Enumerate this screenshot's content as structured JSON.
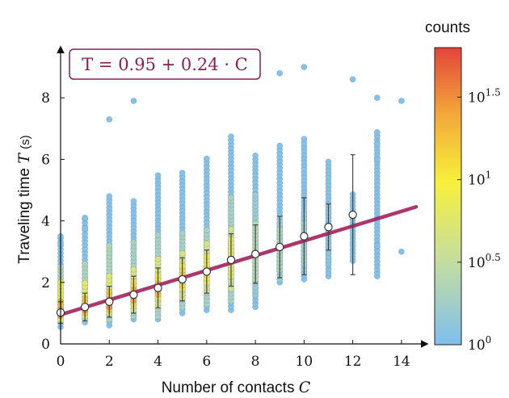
{
  "chart_data": {
    "type": "scatter",
    "xlabel": "Number of contacts",
    "xlabel_symbol": "C",
    "ylabel": "Traveling time",
    "ylabel_symbol": "T",
    "ylabel_unit": "(s)",
    "xlim": [
      0,
      14.6
    ],
    "ylim": [
      0,
      9.5
    ],
    "xticks": [
      "0",
      "2",
      "4",
      "6",
      "8",
      "10",
      "12",
      "14"
    ],
    "yticks": [
      "0",
      "2",
      "4",
      "6",
      "8"
    ],
    "fit": {
      "label": "T = 0.95 + 0.24 · C",
      "intercept": 0.95,
      "slope": 0.24,
      "color": "#a4225e"
    },
    "colorbar": {
      "title": "counts",
      "labels": [
        {
          "base": "10",
          "exp": "0",
          "value": 0
        },
        {
          "base": "10",
          "exp": "0.5",
          "value": 0.5
        },
        {
          "base": "10",
          "exp": "1",
          "value": 1
        },
        {
          "base": "10",
          "exp": "1.5",
          "value": 1.5
        }
      ],
      "range": [
        0,
        1.8
      ],
      "colors": [
        "#7fbfef",
        "#c8df9a",
        "#f7f03a",
        "#f2a63a",
        "#e2453a"
      ]
    },
    "points": [
      {
        "x": 0,
        "segments": [
          [
            0.55,
            3.5,
            0.05
          ],
          [
            0.7,
            2.6,
            0.35
          ],
          [
            0.8,
            2.0,
            0.85
          ],
          [
            0.9,
            1.4,
            1.35
          ],
          [
            0.95,
            1.15,
            1.7
          ]
        ],
        "outliers": [
          3.25,
          3.5
        ]
      },
      {
        "x": 1,
        "segments": [
          [
            0.7,
            4.1,
            0.05
          ],
          [
            0.8,
            2.7,
            0.35
          ],
          [
            0.9,
            2.0,
            0.8
          ],
          [
            1.0,
            1.5,
            1.25
          ],
          [
            1.1,
            1.3,
            1.55
          ]
        ],
        "outliers": [
          3.75,
          4.1
        ]
      },
      {
        "x": 2,
        "segments": [
          [
            0.6,
            4.9,
            0.05
          ],
          [
            0.8,
            3.2,
            0.35
          ],
          [
            1.0,
            2.3,
            0.75
          ],
          [
            1.1,
            1.8,
            1.2
          ],
          [
            1.2,
            1.5,
            1.5
          ]
        ],
        "outliers": [
          7.3
        ]
      },
      {
        "x": 3,
        "segments": [
          [
            0.8,
            4.7,
            0.05
          ],
          [
            0.9,
            3.4,
            0.3
          ],
          [
            1.1,
            2.5,
            0.7
          ],
          [
            1.3,
            2.1,
            1.1
          ],
          [
            1.4,
            1.8,
            1.4
          ]
        ],
        "outliers": [
          7.9
        ]
      },
      {
        "x": 4,
        "segments": [
          [
            0.8,
            5.5,
            0.05
          ],
          [
            0.9,
            3.6,
            0.3
          ],
          [
            1.2,
            2.8,
            0.7
          ],
          [
            1.5,
            2.3,
            1.05
          ],
          [
            1.6,
            2.0,
            1.3
          ]
        ],
        "outliers": []
      },
      {
        "x": 5,
        "segments": [
          [
            1.0,
            5.6,
            0.05
          ],
          [
            1.2,
            3.6,
            0.3
          ],
          [
            1.5,
            3.0,
            0.7
          ],
          [
            1.8,
            2.6,
            0.95
          ],
          [
            1.9,
            2.4,
            1.15
          ]
        ],
        "outliers": []
      },
      {
        "x": 6,
        "segments": [
          [
            1.1,
            6.1,
            0.05
          ],
          [
            1.3,
            3.8,
            0.3
          ],
          [
            1.7,
            3.3,
            0.65
          ],
          [
            2.0,
            2.9,
            0.9
          ]
        ],
        "outliers": []
      },
      {
        "x": 7,
        "segments": [
          [
            1.1,
            6.8,
            0.05
          ],
          [
            1.4,
            4.8,
            0.3
          ],
          [
            1.8,
            3.8,
            0.6
          ],
          [
            2.2,
            3.4,
            0.8
          ]
        ],
        "outliers": []
      },
      {
        "x": 8,
        "segments": [
          [
            1.2,
            6.2,
            0.05
          ],
          [
            1.6,
            4.9,
            0.2
          ],
          [
            2.1,
            3.9,
            0.45
          ]
        ],
        "outliers": []
      },
      {
        "x": 9,
        "segments": [
          [
            2.0,
            6.5,
            0.05
          ],
          [
            2.1,
            4.2,
            0.2
          ],
          [
            2.4,
            3.8,
            0.35
          ]
        ],
        "outliers": [
          8.8
        ]
      },
      {
        "x": 10,
        "segments": [
          [
            2.1,
            6.7,
            0.05
          ],
          [
            2.3,
            4.3,
            0.15
          ],
          [
            2.6,
            4.0,
            0.25
          ]
        ],
        "outliers": [
          9.0
        ]
      },
      {
        "x": 11,
        "segments": [
          [
            2.2,
            6.0,
            0.05
          ],
          [
            2.6,
            4.6,
            0.1
          ]
        ],
        "outliers": []
      },
      {
        "x": 12,
        "segments": [
          [
            2.7,
            4.9,
            0.05
          ]
        ],
        "outliers": [
          8.6
        ]
      },
      {
        "x": 13,
        "segments": [
          [
            2.2,
            6.9,
            0.03
          ]
        ],
        "outliers": [
          8.0,
          6.5,
          6.0,
          3.2
        ]
      },
      {
        "x": 14,
        "segments": [],
        "outliers": [
          7.9,
          3.0
        ]
      }
    ],
    "means": [
      {
        "x": 0,
        "mean": 1.02,
        "sd": 0.35
      },
      {
        "x": 1,
        "mean": 1.2,
        "sd": 0.45
      },
      {
        "x": 2,
        "mean": 1.37,
        "sd": 0.5
      },
      {
        "x": 3,
        "mean": 1.6,
        "sd": 0.6
      },
      {
        "x": 4,
        "mean": 1.82,
        "sd": 0.65
      },
      {
        "x": 5,
        "mean": 2.1,
        "sd": 0.7
      },
      {
        "x": 6,
        "mean": 2.35,
        "sd": 0.7
      },
      {
        "x": 7,
        "mean": 2.73,
        "sd": 0.85
      },
      {
        "x": 8,
        "mean": 2.92,
        "sd": 0.95
      },
      {
        "x": 9,
        "mean": 3.15,
        "sd": 1.0
      },
      {
        "x": 10,
        "mean": 3.5,
        "sd": 1.25
      },
      {
        "x": 11,
        "mean": 3.8,
        "sd": 0.75
      },
      {
        "x": 12,
        "mean": 4.2,
        "sd": 1.95
      }
    ]
  }
}
